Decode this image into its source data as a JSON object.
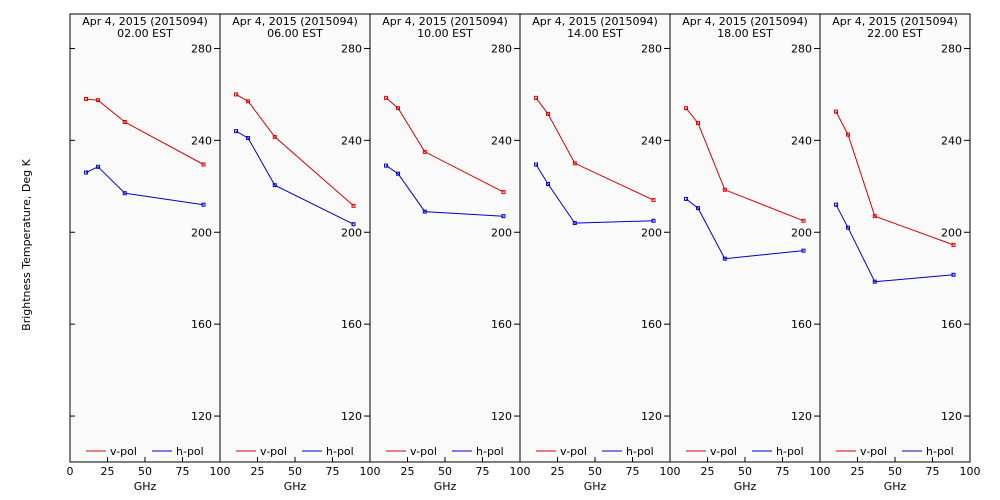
{
  "ylabel": "Brightness Temperature, Deg K",
  "xlabel": "GHz",
  "colors": {
    "vpol": "#dd0000",
    "hpol": "#0000cc",
    "background": "#fafafa",
    "frame": "#000000"
  },
  "chart_data": [
    {
      "type": "line",
      "title": "Apr  4, 2015 (2015094)",
      "subtitle": "02.00 EST",
      "xlabel": "GHz",
      "ylabel": "Brightness Temperature, Deg K",
      "xlim": [
        0,
        100
      ],
      "ylim": [
        100,
        295
      ],
      "xticks": [
        0,
        25,
        50,
        75,
        100
      ],
      "yticks": [
        120,
        160,
        200,
        240,
        280
      ],
      "legend_position": "bottom",
      "x": [
        10.7,
        18.7,
        36.5,
        89.0
      ],
      "series": [
        {
          "name": "v-pol",
          "values": [
            258,
            257.5,
            248,
            229.5
          ]
        },
        {
          "name": "h-pol",
          "values": [
            226,
            228.5,
            217,
            212
          ]
        }
      ]
    },
    {
      "type": "line",
      "title": "Apr  4, 2015 (2015094)",
      "subtitle": "06.00 EST",
      "xlabel": "GHz",
      "ylabel": "Brightness Temperature, Deg K",
      "xlim": [
        0,
        100
      ],
      "ylim": [
        100,
        295
      ],
      "xticks": [
        0,
        25,
        50,
        75,
        100
      ],
      "yticks": [
        120,
        160,
        200,
        240,
        280
      ],
      "legend_position": "bottom",
      "x": [
        10.7,
        18.7,
        36.5,
        89.0
      ],
      "series": [
        {
          "name": "v-pol",
          "values": [
            260,
            257,
            241.5,
            211.5
          ]
        },
        {
          "name": "h-pol",
          "values": [
            244,
            241,
            220.5,
            203.5
          ]
        }
      ]
    },
    {
      "type": "line",
      "title": "Apr  4, 2015 (2015094)",
      "subtitle": "10.00 EST",
      "xlabel": "GHz",
      "ylabel": "Brightness Temperature, Deg K",
      "xlim": [
        0,
        100
      ],
      "ylim": [
        100,
        295
      ],
      "xticks": [
        0,
        25,
        50,
        75,
        100
      ],
      "yticks": [
        120,
        160,
        200,
        240,
        280
      ],
      "legend_position": "bottom",
      "x": [
        10.7,
        18.7,
        36.5,
        89.0
      ],
      "series": [
        {
          "name": "v-pol",
          "values": [
            258.5,
            254,
            235,
            217.5
          ]
        },
        {
          "name": "h-pol",
          "values": [
            229,
            225.5,
            209,
            207
          ]
        }
      ]
    },
    {
      "type": "line",
      "title": "Apr  4, 2015 (2015094)",
      "subtitle": "14.00 EST",
      "xlabel": "GHz",
      "ylabel": "Brightness Temperature, Deg K",
      "xlim": [
        0,
        100
      ],
      "ylim": [
        100,
        295
      ],
      "xticks": [
        0,
        25,
        50,
        75,
        100
      ],
      "yticks": [
        120,
        160,
        200,
        240,
        280
      ],
      "legend_position": "bottom",
      "x": [
        10.7,
        18.7,
        36.5,
        89.0
      ],
      "series": [
        {
          "name": "v-pol",
          "values": [
            258.5,
            251.5,
            230,
            214
          ]
        },
        {
          "name": "h-pol",
          "values": [
            229.5,
            221,
            204,
            205
          ]
        }
      ]
    },
    {
      "type": "line",
      "title": "Apr  4, 2015 (2015094)",
      "subtitle": "18.00 EST",
      "xlabel": "GHz",
      "ylabel": "Brightness Temperature, Deg K",
      "xlim": [
        0,
        100
      ],
      "ylim": [
        100,
        295
      ],
      "xticks": [
        0,
        25,
        50,
        75,
        100
      ],
      "yticks": [
        120,
        160,
        200,
        240,
        280
      ],
      "legend_position": "bottom",
      "x": [
        10.7,
        18.7,
        36.5,
        89.0
      ],
      "series": [
        {
          "name": "v-pol",
          "values": [
            254,
            247.5,
            218.5,
            205
          ]
        },
        {
          "name": "h-pol",
          "values": [
            214.5,
            210.5,
            188.5,
            192
          ]
        }
      ]
    },
    {
      "type": "line",
      "title": "Apr  4, 2015 (2015094)",
      "subtitle": "22.00 EST",
      "xlabel": "GHz",
      "ylabel": "Brightness Temperature, Deg K",
      "xlim": [
        0,
        100
      ],
      "ylim": [
        100,
        295
      ],
      "xticks": [
        0,
        25,
        50,
        75,
        100
      ],
      "yticks": [
        120,
        160,
        200,
        240,
        280
      ],
      "legend_position": "bottom",
      "x": [
        10.7,
        18.7,
        36.5,
        89.0
      ],
      "series": [
        {
          "name": "v-pol",
          "values": [
            252.5,
            242.5,
            207,
            194.5
          ]
        },
        {
          "name": "h-pol",
          "values": [
            212,
            202,
            178.5,
            181.5
          ]
        }
      ]
    }
  ]
}
